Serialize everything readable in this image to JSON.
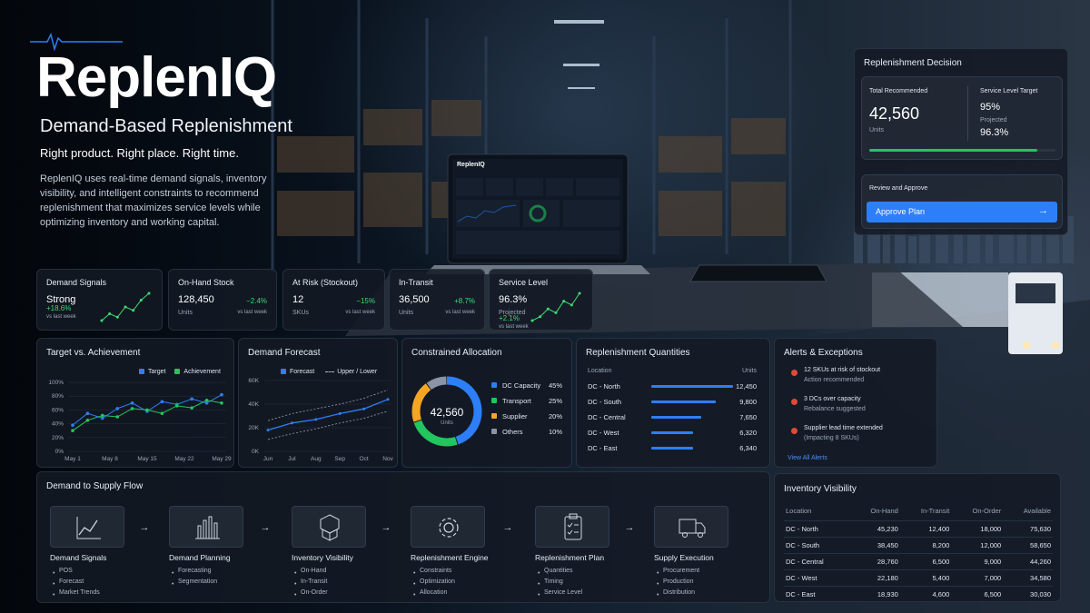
{
  "brand": {
    "name": "ReplenIQ",
    "tagline": "Demand-Based Replenishment",
    "slogan": "Right product. Right place. Right time.",
    "description": "ReplenIQ uses real-time demand signals, inventory visibility, and intelligent constraints to recommend replenishment that maximizes service levels while optimizing inventory and working capital."
  },
  "laptop": {
    "logo": "ReplenIQ"
  },
  "decision": {
    "title": "Replenishment Decision",
    "total_label": "Total Recommended",
    "total_value": "42,560",
    "total_unit": "Units",
    "slt_label": "Service Level Target",
    "slt_value": "95%",
    "projected_label": "Projected",
    "projected_value": "96.3%",
    "progress": 0.9,
    "review_label": "Review and Approve",
    "approve_label": "Approve Plan",
    "approve_icon": "arrow-right-icon"
  },
  "kpis": [
    {
      "label": "Demand Signals",
      "value": "Strong",
      "delta": "+18.6%",
      "delta_note": "vs last week",
      "spark": [
        3,
        5,
        4,
        7,
        6,
        9,
        11
      ]
    },
    {
      "label": "On-Hand Stock",
      "value": "128,450",
      "unit": "Units",
      "delta": "−2.4%",
      "delta_note": "vs last week"
    },
    {
      "label": "At Risk (Stockout)",
      "value": "12",
      "unit": "SKUs",
      "delta": "−15%",
      "delta_note": "vs last week"
    },
    {
      "label": "In-Transit",
      "value": "36,500",
      "unit": "Units",
      "delta": "+8.7%",
      "delta_note": "vs last week"
    },
    {
      "label": "Service Level",
      "value": "96.3%",
      "unit": "Projected",
      "delta": "+2.1%",
      "delta_note": "vs last week",
      "spark": [
        3,
        4,
        6,
        5,
        8,
        7,
        10
      ]
    }
  ],
  "target_chart": {
    "title": "Target vs. Achievement",
    "legend": [
      "Target",
      "Achievement"
    ],
    "yticks": [
      "100%",
      "80%",
      "60%",
      "40%",
      "20%",
      "0%"
    ],
    "xticks": [
      "May 1",
      "May 8",
      "May 15",
      "May 22",
      "May 29"
    ]
  },
  "forecast_chart": {
    "title": "Demand Forecast",
    "legend": [
      "Forecast",
      "Upper / Lower"
    ],
    "yticks": [
      "60K",
      "40K",
      "20K",
      "0K"
    ],
    "xticks": [
      "Jun",
      "Jul",
      "Aug",
      "Sep",
      "Oct",
      "Nov"
    ]
  },
  "chart_data": [
    {
      "type": "line",
      "title": "Target vs. Achievement",
      "x": [
        "May 1",
        "May 4",
        "May 7",
        "May 10",
        "May 13",
        "May 16",
        "May 19",
        "May 22",
        "May 25",
        "May 28",
        "May 29"
      ],
      "ylim": [
        0,
        100
      ],
      "series": [
        {
          "name": "Target",
          "values": [
            38,
            55,
            48,
            62,
            70,
            58,
            72,
            68,
            76,
            70,
            82
          ]
        },
        {
          "name": "Achievement",
          "values": [
            30,
            45,
            52,
            50,
            62,
            60,
            55,
            66,
            63,
            74,
            70
          ]
        }
      ]
    },
    {
      "type": "line",
      "title": "Demand Forecast",
      "x": [
        "Jun",
        "Jul",
        "Aug",
        "Sep",
        "Oct",
        "Nov"
      ],
      "ylim": [
        0,
        60000
      ],
      "series": [
        {
          "name": "Forecast",
          "values": [
            18000,
            24000,
            27000,
            32000,
            36000,
            44000
          ]
        },
        {
          "name": "Upper / Lower",
          "values": [
            26000,
            32000,
            36000,
            40000,
            45000,
            52000
          ]
        },
        {
          "name": "Upper / Lower",
          "values": [
            10000,
            15000,
            19000,
            24000,
            28000,
            34000
          ]
        }
      ]
    },
    {
      "type": "pie",
      "title": "Constrained Allocation",
      "categories": [
        "DC Capacity",
        "Transport",
        "Supplier",
        "Others"
      ],
      "values": [
        45,
        25,
        20,
        10
      ]
    },
    {
      "type": "bar",
      "title": "Replenishment Quantities",
      "categories": [
        "DC - North",
        "DC - South",
        "DC - Central",
        "DC - West",
        "DC - East"
      ],
      "values": [
        12450,
        9800,
        7650,
        6320,
        6340
      ]
    }
  ],
  "allocation": {
    "title": "Constrained Allocation",
    "center_value": "42,560",
    "center_unit": "Units",
    "items": [
      {
        "label": "DC Capacity",
        "pct": "45%",
        "color": "#2d7ff9"
      },
      {
        "label": "Transport",
        "pct": "25%",
        "color": "#22c55e"
      },
      {
        "label": "Supplier",
        "pct": "20%",
        "color": "#f5a524"
      },
      {
        "label": "Others",
        "pct": "10%",
        "color": "#8a94a6"
      }
    ]
  },
  "quantities": {
    "title": "Replenishment Quantities",
    "col_location": "Location",
    "col_units": "Units",
    "rows": [
      {
        "loc": "DC - North",
        "units": "12,450"
      },
      {
        "loc": "DC - South",
        "units": "9,800"
      },
      {
        "loc": "DC - Central",
        "units": "7,650"
      },
      {
        "loc": "DC - West",
        "units": "6,320"
      },
      {
        "loc": "DC - East",
        "units": "6,340"
      }
    ]
  },
  "alerts": {
    "title": "Alerts & Exceptions",
    "items": [
      {
        "title": "12 SKUs at risk of stockout",
        "sub": "Action recommended"
      },
      {
        "title": "3 DCs over capacity",
        "sub": "Rebalance suggested"
      },
      {
        "title": "Supplier lead time extended",
        "sub": "(Impacting 8 SKUs)"
      }
    ],
    "link": "View All Alerts"
  },
  "flow": {
    "title": "Demand to Supply Flow",
    "steps": [
      {
        "title": "Demand Signals",
        "icon": "trend-chart-icon",
        "items": [
          "POS",
          "Forecast",
          "Market Trends"
        ]
      },
      {
        "title": "Demand Planning",
        "icon": "bar-chart-icon",
        "items": [
          "Forecasting",
          "Segmentation"
        ]
      },
      {
        "title": "Inventory Visibility",
        "icon": "boxes-icon",
        "items": [
          "On-Hand",
          "In-Transit",
          "On-Order"
        ]
      },
      {
        "title": "Replenishment Engine",
        "icon": "gear-icon",
        "items": [
          "Constraints",
          "Optimization",
          "Allocation"
        ]
      },
      {
        "title": "Replenishment Plan",
        "icon": "clipboard-icon",
        "items": [
          "Quantities",
          "Timing",
          "Service Level"
        ]
      },
      {
        "title": "Supply Execution",
        "icon": "truck-icon",
        "items": [
          "Procurement",
          "Production",
          "Distribution"
        ]
      }
    ]
  },
  "inventory": {
    "title": "Inventory Visibility",
    "headers": [
      "Location",
      "On-Hand",
      "In-Transit",
      "On-Order",
      "Available"
    ],
    "rows": [
      [
        "DC - North",
        "45,230",
        "12,400",
        "18,000",
        "75,630"
      ],
      [
        "DC - South",
        "38,450",
        "8,200",
        "12,000",
        "58,650"
      ],
      [
        "DC - Central",
        "28,760",
        "6,500",
        "9,000",
        "44,260"
      ],
      [
        "DC - West",
        "22,180",
        "5,400",
        "7,000",
        "34,580"
      ],
      [
        "DC - East",
        "18,930",
        "4,600",
        "6,500",
        "30,030"
      ]
    ]
  },
  "colors": {
    "accent": "#2d7ff9",
    "green": "#3ddc74",
    "amber": "#f5a524",
    "gray": "#8a94a6"
  }
}
